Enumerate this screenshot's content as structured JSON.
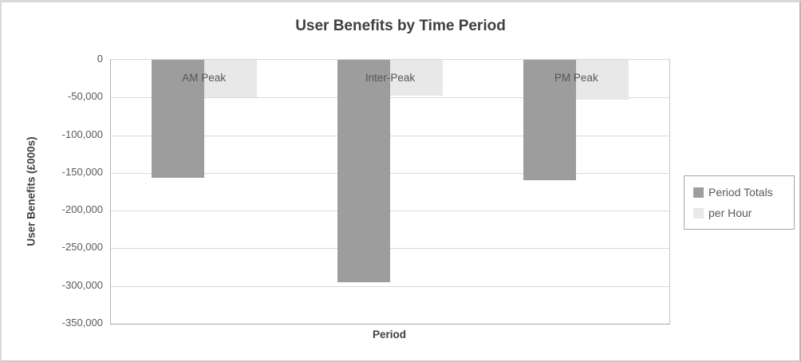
{
  "chart_data": {
    "type": "bar",
    "title": "User Benefits by Time Period",
    "xlabel": "Period",
    "ylabel": "User Benefits (£000s)",
    "categories": [
      "AM Peak",
      "Inter-Peak",
      "PM Peak"
    ],
    "series": [
      {
        "name": "Period Totals",
        "color": "#9d9d9d",
        "values": [
          -156000,
          -295000,
          -159500
        ]
      },
      {
        "name": "per Hour",
        "color": "#e8e8e8",
        "values": [
          -50000,
          -48000,
          -52500
        ]
      }
    ],
    "ylim": [
      -350000,
      0
    ],
    "yticks": [
      0,
      -50000,
      -100000,
      -150000,
      -200000,
      -250000,
      -300000,
      -350000
    ],
    "ytick_labels": [
      "0",
      "-50,000",
      "-100,000",
      "-150,000",
      "-200,000",
      "-250,000",
      "-300,000",
      "-350,000"
    ],
    "grid": "horizontal",
    "legend_position": "right",
    "colors": {
      "gridline": "#d9d9d9",
      "axis_line": "#a6a6a6",
      "title_text": "#3f3f3f",
      "tick_text": "#595959",
      "background": "#ffffff"
    }
  }
}
